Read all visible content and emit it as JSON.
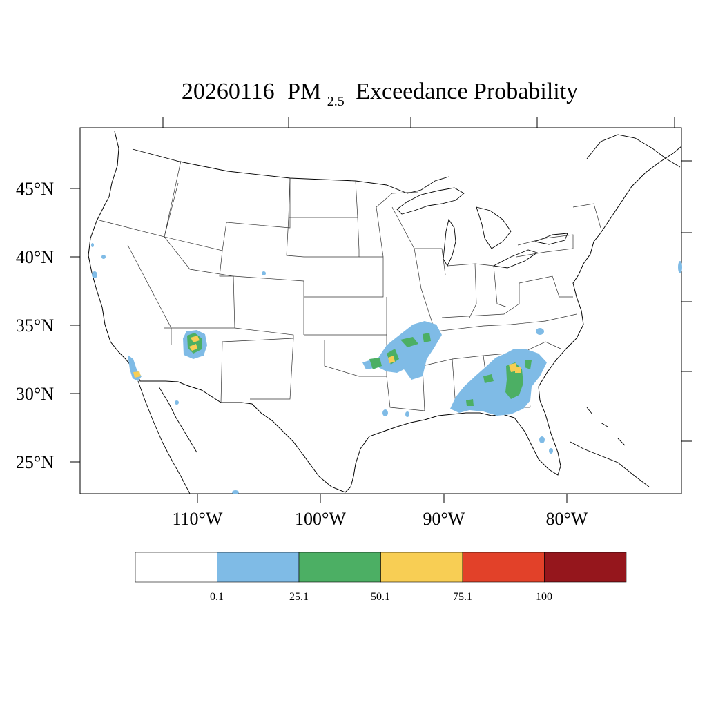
{
  "title": {
    "date": "20260116",
    "pollutant_main": "PM",
    "pollutant_sub": "2.5",
    "suffix": "Exceedance Probability"
  },
  "map": {
    "region": "Continental United States",
    "lon_range": [
      -118.8,
      -70.3
    ],
    "lat_range": [
      22.8,
      49.4
    ],
    "lat_ticks": [
      {
        "value": 45,
        "label": "45°N"
      },
      {
        "value": 40,
        "label": "40°N"
      },
      {
        "value": 35,
        "label": "35°N"
      },
      {
        "value": 30,
        "label": "30°N"
      },
      {
        "value": 25,
        "label": "25°N"
      }
    ],
    "lon_ticks": [
      {
        "value": -110,
        "label": "110°W"
      },
      {
        "value": -100,
        "label": "100°W"
      },
      {
        "value": -90,
        "label": "90°W"
      },
      {
        "value": -80,
        "label": "80°W"
      }
    ],
    "outline_color": "#000000",
    "state_line_color": "#333333"
  },
  "legend": {
    "bins": [
      {
        "color": "#ffffff"
      },
      {
        "color": "#7fbbe6"
      },
      {
        "color": "#4caf64"
      },
      {
        "color": "#f8ce54"
      },
      {
        "color": "#e24129"
      },
      {
        "color": "#95161c"
      }
    ],
    "labels": [
      "0.1",
      "25.1",
      "50.1",
      "75.1",
      "100"
    ]
  },
  "probability_areas": [
    {
      "name": "arizona-high-country",
      "level": "0.1-25.1",
      "color": "#7fbbe6",
      "lon": -110.1,
      "lat": 33.6
    },
    {
      "name": "arizona-high-country",
      "level": "25.1-50.1",
      "color": "#4caf64",
      "lon": -110.1,
      "lat": 33.7
    },
    {
      "name": "arizona-high-country",
      "level": "50.1-75.1",
      "color": "#f8ce54",
      "lon": -110.0,
      "lat": 34.0
    },
    {
      "name": "southern-california-coast",
      "level": "0.1-25.1",
      "color": "#7fbbe6",
      "lon": -116.7,
      "lat": 32.1
    },
    {
      "name": "southern-california-coast",
      "level": "50.1-75.1",
      "color": "#f8ce54",
      "lon": -115.6,
      "lat": 31.4
    },
    {
      "name": "arkansas-oklahoma",
      "level": "0.1-25.1",
      "color": "#7fbbe6",
      "lon": -92.5,
      "lat": 33.0
    },
    {
      "name": "arkansas-oklahoma",
      "level": "25.1-50.1",
      "color": "#4caf64",
      "lon": -94.0,
      "lat": 32.6
    },
    {
      "name": "arkansas-oklahoma",
      "level": "50.1-75.1",
      "color": "#f8ce54",
      "lon": -94.3,
      "lat": 32.2
    },
    {
      "name": "gulf-coast-southeast",
      "level": "0.1-25.1",
      "color": "#7fbbe6",
      "lon": -86.5,
      "lat": 30.3
    },
    {
      "name": "georgia-carolinas",
      "level": "0.1-25.1",
      "color": "#7fbbe6",
      "lon": -84.0,
      "lat": 31.3
    },
    {
      "name": "georgia-carolinas",
      "level": "25.1-50.1",
      "color": "#4caf64",
      "lon": -84.1,
      "lat": 31.1
    },
    {
      "name": "georgia-carolinas",
      "level": "50.1-75.1",
      "color": "#f8ce54",
      "lon": -83.7,
      "lat": 32.2
    }
  ]
}
